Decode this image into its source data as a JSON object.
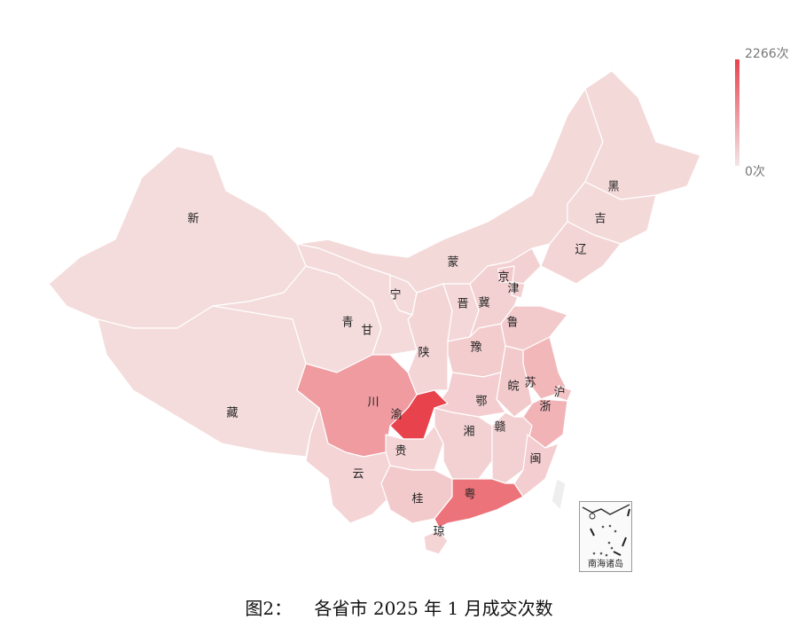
{
  "caption": "图2：    各省市 2025 年 1 月成交次数",
  "legend": {
    "max_label": "2266次",
    "min_label": "0次",
    "min": 0,
    "max": 2266,
    "color_low": "#f3e6e8",
    "color_high": "#e8424c"
  },
  "inset": {
    "label": "南海诸岛"
  },
  "base_color": "#f5e4e4",
  "provinces": [
    {
      "label": "新",
      "intensity": 0.05
    },
    {
      "label": "藏",
      "intensity": 0.05
    },
    {
      "label": "青",
      "intensity": 0.05
    },
    {
      "label": "甘",
      "intensity": 0.06
    },
    {
      "label": "宁",
      "intensity": 0.06
    },
    {
      "label": "蒙",
      "intensity": 0.07
    },
    {
      "label": "黑",
      "intensity": 0.07
    },
    {
      "label": "吉",
      "intensity": 0.07
    },
    {
      "label": "辽",
      "intensity": 0.09
    },
    {
      "label": "陕",
      "intensity": 0.09
    },
    {
      "label": "晋",
      "intensity": 0.08
    },
    {
      "label": "冀",
      "intensity": 0.12
    },
    {
      "label": "京",
      "intensity": 0.16
    },
    {
      "label": "津",
      "intensity": 0.12
    },
    {
      "label": "鲁",
      "intensity": 0.16
    },
    {
      "label": "豫",
      "intensity": 0.15
    },
    {
      "label": "苏",
      "intensity": 0.28
    },
    {
      "label": "皖",
      "intensity": 0.16
    },
    {
      "label": "沪",
      "intensity": 0.2
    },
    {
      "label": "浙",
      "intensity": 0.3
    },
    {
      "label": "鄂",
      "intensity": 0.14
    },
    {
      "label": "渝",
      "intensity": 1.0
    },
    {
      "label": "川",
      "intensity": 0.45
    },
    {
      "label": "贵",
      "intensity": 0.1
    },
    {
      "label": "湘",
      "intensity": 0.12
    },
    {
      "label": "赣",
      "intensity": 0.12
    },
    {
      "label": "闽",
      "intensity": 0.14
    },
    {
      "label": "云",
      "intensity": 0.1
    },
    {
      "label": "桂",
      "intensity": 0.16
    },
    {
      "label": "粤",
      "intensity": 0.7
    },
    {
      "label": "琼",
      "intensity": 0.1
    }
  ]
}
